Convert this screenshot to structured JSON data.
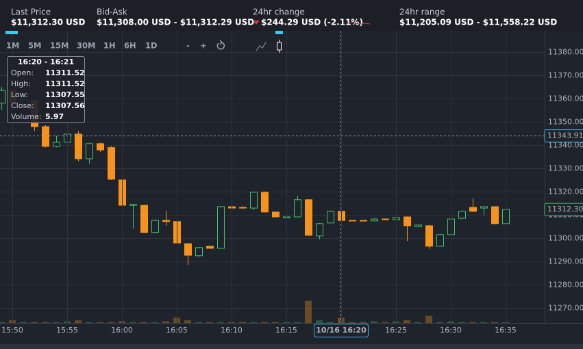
{
  "header": {
    "items": [
      {
        "label": "Last Price",
        "value": "$11,312.30 USD"
      },
      {
        "label": "Bid-Ask",
        "value": "$11,308.00 USD - $11,312.29 USD"
      },
      {
        "label": "24hr change",
        "value": "$244.29 USD (-2.11%)"
      },
      {
        "label": "24hr range",
        "value": "$11,205.09 USD - $11,558.22 USD"
      }
    ]
  },
  "toolbar": {
    "intervals": [
      "1M",
      "5M",
      "15M",
      "30M",
      "1H",
      "6H",
      "1D"
    ],
    "zoom_out": "-",
    "zoom_in": "+"
  },
  "tooltip": {
    "title": "16:20 - 16:21",
    "labels": [
      "Open:",
      "High:",
      "Low:",
      "Close:",
      "Volume:"
    ]
  },
  "chart_data": {
    "type": "candlestick",
    "categories": [
      null,
      "15:50",
      "15:51",
      "15:52",
      "15:53",
      "15:54",
      "15:55",
      "15:56",
      "15:57",
      "15:58",
      "15:59",
      "16:00",
      "16:01",
      "16:02",
      "16:03",
      "16:04",
      "16:05",
      "16:06",
      "16:07",
      "16:08",
      "16:09",
      "16:10",
      "16:11",
      "16:12",
      "16:13",
      "16:14",
      "16:15",
      "16:16",
      "16:17",
      "16:18",
      "16:19",
      "16:20",
      "16:21",
      "16:22",
      "16:23",
      "16:24",
      "16:25",
      "16:26",
      "16:27",
      "16:28",
      "16:29",
      "16:30",
      "16:31",
      "16:32",
      "16:33",
      "16:34",
      "16:35"
    ],
    "open": [
      11358,
      11363.5,
      11357.5,
      11359.1,
      11347.9,
      11339.4,
      11341.2,
      11344.7,
      11334.1,
      11340.6,
      11338.9,
      11325.0,
      11314.1,
      11314.1,
      11302.4,
      11307.6,
      11307.1,
      11297.6,
      11292.4,
      11296.5,
      11295.6,
      11313.5,
      11313.2,
      11312.9,
      11319.7,
      11311.2,
      11308.8,
      11309.1,
      11316.5,
      11300.9,
      11306.5,
      11311.52,
      11307.6,
      11307.6,
      11307.4,
      11308.2,
      11307.9,
      11309.1,
      11305.0,
      11305.3,
      11296.5,
      11301.5,
      11308.5,
      11313.2,
      11312.9,
      11313.5,
      11306.2
    ],
    "high": [
      11365,
      11366,
      11360,
      11359.5,
      11348.5,
      11344,
      11347,
      11346,
      11341,
      11341,
      11339.5,
      11334,
      11314.5,
      11314.2,
      11308,
      11311.8,
      11307.4,
      11297.8,
      11296.2,
      11296.8,
      11313.8,
      11313.7,
      11313.7,
      11319.9,
      11320,
      11311.4,
      11309.4,
      11318.2,
      11316.7,
      11306.5,
      11311.8,
      11311.52,
      11307.7,
      11307.7,
      11308.5,
      11308.5,
      11309.2,
      11309.3,
      11305.8,
      11305.6,
      11301.8,
      11308.8,
      11312,
      11317.1,
      11313.7,
      11313.7,
      11312.5
    ],
    "low": [
      11355,
      11356,
      11357,
      11346,
      11339,
      11339,
      11339,
      11333,
      11332,
      11337,
      11325,
      11314,
      11304.1,
      11302.2,
      11302,
      11305.3,
      11297.6,
      11288.5,
      11291.8,
      11295.4,
      11295.4,
      11312.7,
      11312.5,
      11312,
      11311,
      11309,
      11308.5,
      11308.8,
      11301,
      11299.5,
      11306.3,
      11307.55,
      11307.2,
      11307.2,
      11307.2,
      11307.7,
      11307.7,
      11298.8,
      11304.8,
      11295.4,
      11296.2,
      11301.3,
      11308.2,
      11311.2,
      11310,
      11305.9,
      11306
    ],
    "close": [
      11363.5,
      11358.2,
      11359.5,
      11347.9,
      11339.4,
      11341.2,
      11344.7,
      11334.1,
      11340.6,
      11337.9,
      11325.3,
      11314.1,
      11314.4,
      11302.4,
      11307.6,
      11307.1,
      11297.9,
      11292.6,
      11295.9,
      11295.6,
      11313.5,
      11312.9,
      11312.9,
      11319.7,
      11311.2,
      11309.1,
      11309.1,
      11316.5,
      11301.2,
      11306.2,
      11311.5,
      11307.56,
      11307.4,
      11307.4,
      11308.2,
      11307.9,
      11308.8,
      11305.3,
      11305.6,
      11296.5,
      11301.5,
      11308.2,
      11311.5,
      11311.5,
      11313.5,
      11306.2,
      11312.3
    ],
    "volume": [
      1,
      3,
      1,
      1,
      1,
      1,
      2,
      3,
      1,
      1,
      1,
      2,
      1,
      1,
      1,
      2,
      6,
      3,
      1,
      1,
      1,
      1,
      1,
      1,
      1,
      1,
      1,
      1,
      25,
      3,
      1,
      5.97,
      1,
      1,
      2,
      1,
      2,
      3,
      1,
      8,
      1,
      2,
      1,
      1,
      1,
      1,
      1
    ],
    "up_color": "#3ec46d",
    "down_color": "#f7931a",
    "ylim": [
      11263.5,
      11389.1
    ],
    "yticks": [
      {
        "value": 11270,
        "label": "11270.00"
      },
      {
        "value": 11280,
        "label": "11280.00"
      },
      {
        "value": 11290,
        "label": "11290.00"
      },
      {
        "value": 11300,
        "label": "11300.00"
      },
      {
        "value": 11310,
        "label": "11310.00"
      },
      {
        "value": 11320,
        "label": "11320.00"
      },
      {
        "value": 11330,
        "label": "11330.00"
      },
      {
        "value": 11340,
        "label": "11340.00"
      },
      {
        "value": 11350,
        "label": "11350.00"
      },
      {
        "value": 11360,
        "label": "11360.00"
      },
      {
        "value": 11370,
        "label": "11370.00"
      },
      {
        "value": 11380,
        "label": "11380.00"
      }
    ],
    "grid": true,
    "last_price": {
      "value": 11312.3,
      "label": "11312.30"
    },
    "crosshair": {
      "price": 11343.91,
      "time_label": "10/16 16:20"
    }
  }
}
